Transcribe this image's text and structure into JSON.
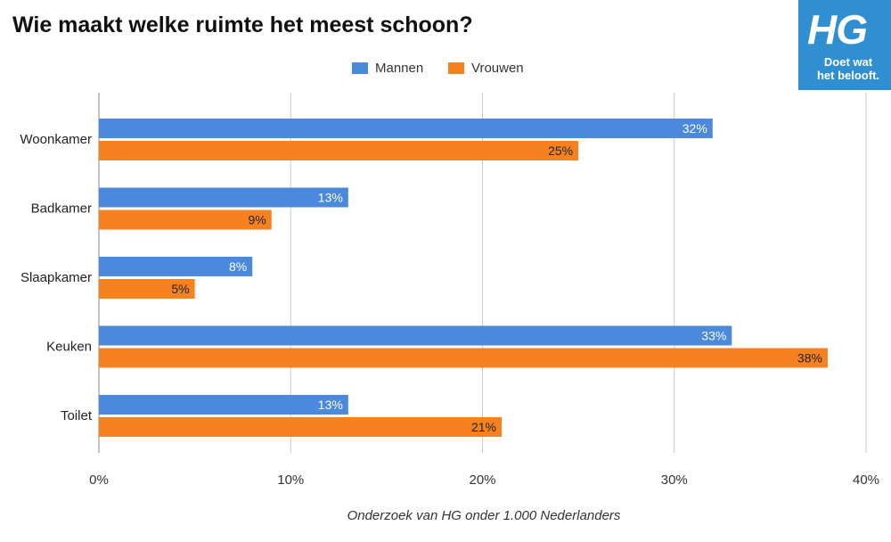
{
  "title": "Wie maakt welke ruimte het meest schoon?",
  "logo": {
    "mark": "HG",
    "tagline_line1": "Doet wat",
    "tagline_line2": "het belooft."
  },
  "footnote": "Onderzoek van HG onder 1.000 Nederlanders",
  "colors": {
    "mannen": "#4a89dc",
    "vrouwen": "#f5821f",
    "grid": "#cccccc"
  },
  "chart_data": {
    "type": "bar",
    "orientation": "horizontal",
    "categories": [
      "Woonkamer",
      "Badkamer",
      "Slaapkamer",
      "Keuken",
      "Toilet"
    ],
    "series": [
      {
        "name": "Mannen",
        "color": "#4a89dc",
        "values": [
          32,
          13,
          8,
          33,
          13
        ],
        "labels": [
          "32%",
          "13%",
          "8%",
          "33%",
          "13%"
        ]
      },
      {
        "name": "Vrouwen",
        "color": "#f5821f",
        "values": [
          25,
          9,
          5,
          38,
          21
        ],
        "labels": [
          "25%",
          "9%",
          "5%",
          "38%",
          "21%"
        ]
      }
    ],
    "xlim": [
      0,
      40
    ],
    "xticks": [
      0,
      10,
      20,
      30,
      40
    ],
    "xtick_labels": [
      "0%",
      "10%",
      "20%",
      "30%",
      "40%"
    ],
    "grid": true,
    "legend_position": "top"
  }
}
